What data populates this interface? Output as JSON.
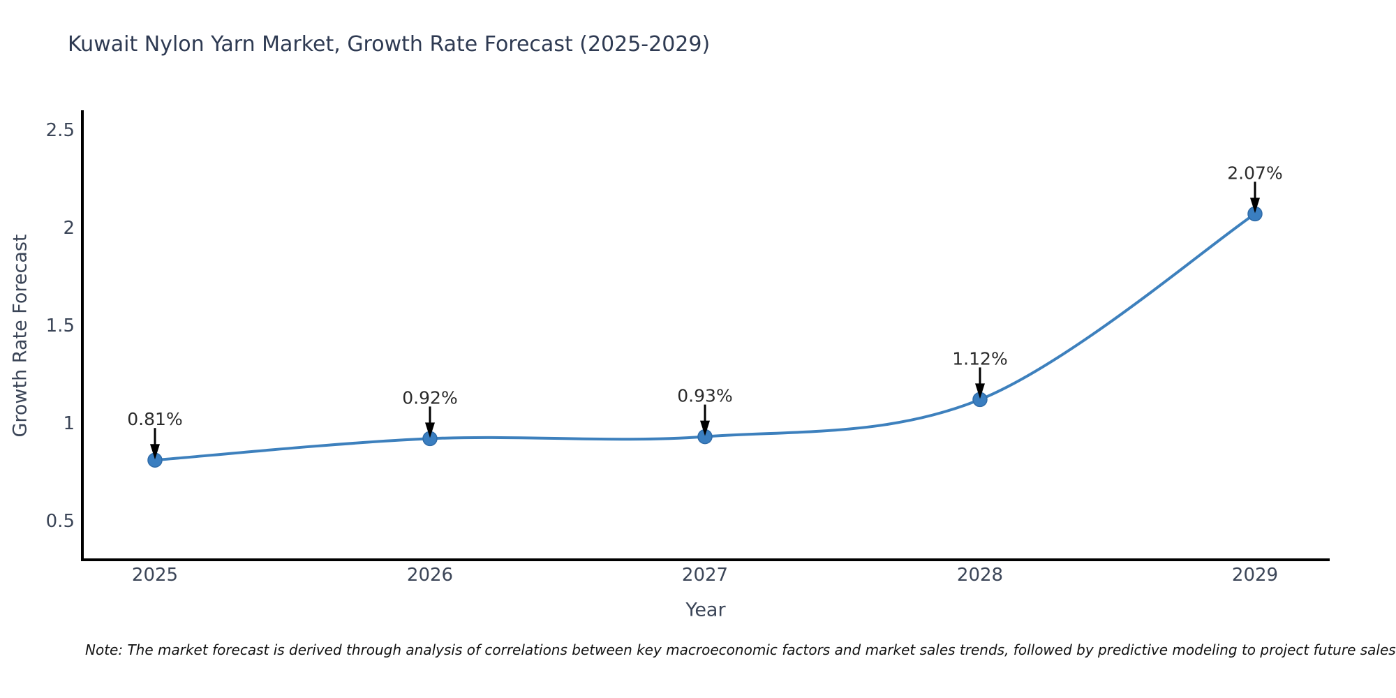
{
  "figure": {
    "note": "Note: The market forecast is derived through analysis of correlations between key macroeconomic factors and market sales trends, followed by predictive modeling to project future sales"
  },
  "chart_data": {
    "type": "line",
    "title": "Kuwait Nylon Yarn Market, Growth Rate Forecast (2025-2029)",
    "xlabel": "Year",
    "ylabel": "Growth Rate Forecast",
    "x": [
      2025,
      2026,
      2027,
      2028,
      2029
    ],
    "values": [
      0.81,
      0.92,
      0.93,
      1.12,
      2.07
    ],
    "point_labels": [
      "0.81%",
      "0.92%",
      "0.93%",
      "1.12%",
      "2.07%"
    ],
    "xtick_labels": [
      "2025",
      "2026",
      "2027",
      "2028",
      "2029"
    ],
    "ytick_values": [
      0.5,
      1,
      1.5,
      2,
      2.5
    ],
    "ytick_labels": [
      "0.5",
      "1",
      "1.5",
      "2",
      "2.5"
    ],
    "ylim": [
      0.3,
      2.6
    ],
    "grid": false,
    "legend": "none",
    "smooth": true,
    "colors": {
      "line": "#3d80bd",
      "marker_fill": "#3a7ec0",
      "marker_edge": "#2f6ba8",
      "annotation_text": "#2a2a2a",
      "annotation_arrow": "#000000",
      "axis_spine": "#000000",
      "tick_label": "#3b4557",
      "title": "#2e3a52",
      "background": "#ffffff"
    }
  }
}
